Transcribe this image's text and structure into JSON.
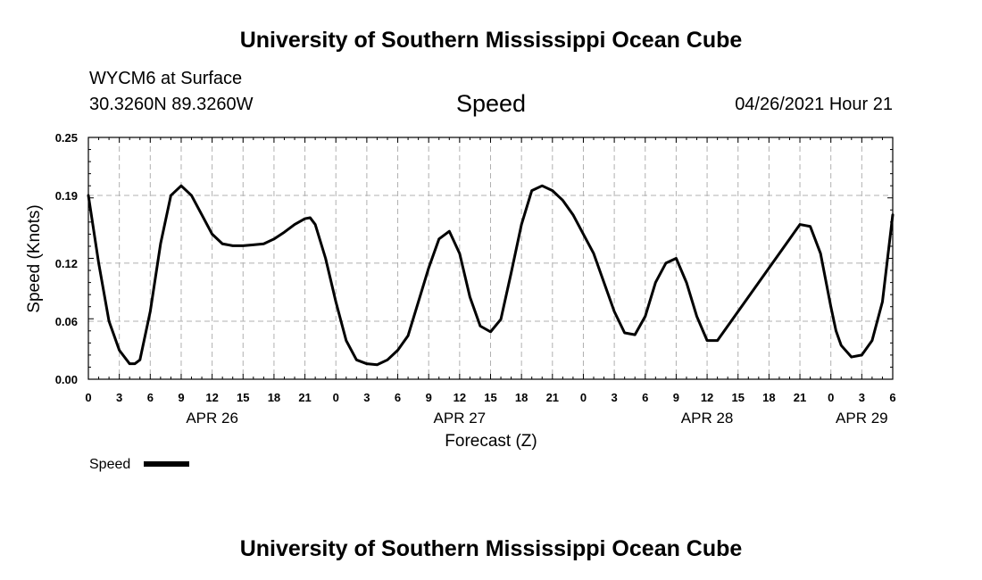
{
  "header": {
    "title": "University of Southern Mississippi Ocean Cube",
    "station": "WYCM6 at Surface",
    "coords": "30.3260N  89.3260W",
    "plot_title": "Speed",
    "date_hour": "04/26/2021 Hour 21"
  },
  "footer": {
    "title": "University of Southern Mississippi Ocean Cube"
  },
  "colors": {
    "line": "#000000",
    "grid": "#b0b0b0",
    "background": "#ffffff"
  },
  "chart_data": {
    "type": "line",
    "xlabel": "Forecast (Z)",
    "ylabel": "Speed (Knots)",
    "ylim": [
      0,
      0.25
    ],
    "xlim": [
      0,
      78
    ],
    "y_ticks": [
      0.0,
      0.06,
      0.12,
      0.19,
      0.25
    ],
    "y_tick_labels": [
      "0.00",
      "0.06",
      "0.12",
      "0.19",
      "0.25"
    ],
    "x_ticks": [
      0,
      3,
      6,
      9,
      12,
      15,
      18,
      21,
      24,
      27,
      30,
      33,
      36,
      39,
      42,
      45,
      48,
      51,
      54,
      57,
      60,
      63,
      66,
      69,
      72,
      75,
      78
    ],
    "x_tick_labels": [
      "0",
      "3",
      "6",
      "9",
      "12",
      "15",
      "18",
      "21",
      "0",
      "3",
      "6",
      "9",
      "12",
      "15",
      "18",
      "21",
      "0",
      "3",
      "6",
      "9",
      "12",
      "15",
      "18",
      "21",
      "0",
      "3",
      "6"
    ],
    "day_labels": [
      {
        "label": "APR 26",
        "x": 12
      },
      {
        "label": "APR 27",
        "x": 36
      },
      {
        "label": "APR 28",
        "x": 60
      },
      {
        "label": "APR 29",
        "x": 75
      }
    ],
    "grid": true,
    "legend_position": "bottom-left",
    "series": [
      {
        "name": "Speed",
        "x": [
          0,
          1,
          2,
          3,
          4,
          4.5,
          5,
          6,
          7,
          8,
          9,
          10,
          11,
          12,
          13,
          14,
          15,
          16,
          17,
          18,
          19,
          20,
          21,
          21.5,
          22,
          23,
          24,
          25,
          26,
          27,
          28,
          29,
          30,
          31,
          32,
          33,
          34,
          35,
          36,
          37,
          38,
          39,
          40,
          41,
          42,
          43,
          44,
          45,
          46,
          47,
          48,
          49,
          50,
          51,
          52,
          53,
          54,
          55,
          56,
          57,
          58,
          59,
          60,
          61,
          62,
          63,
          64,
          65,
          66,
          67,
          68,
          69,
          70,
          71,
          72,
          72.5,
          73,
          74,
          75,
          76,
          77,
          78
        ],
        "values": [
          0.19,
          0.12,
          0.06,
          0.03,
          0.016,
          0.016,
          0.02,
          0.07,
          0.14,
          0.19,
          0.2,
          0.19,
          0.17,
          0.15,
          0.14,
          0.138,
          0.138,
          0.139,
          0.14,
          0.145,
          0.152,
          0.16,
          0.166,
          0.167,
          0.16,
          0.125,
          0.08,
          0.04,
          0.02,
          0.016,
          0.015,
          0.02,
          0.03,
          0.045,
          0.08,
          0.115,
          0.145,
          0.153,
          0.13,
          0.085,
          0.055,
          0.049,
          0.062,
          0.11,
          0.16,
          0.195,
          0.2,
          0.195,
          0.185,
          0.17,
          0.15,
          0.13,
          0.1,
          0.07,
          0.048,
          0.046,
          0.065,
          0.1,
          0.12,
          0.125,
          0.1,
          0.065,
          0.04,
          0.04,
          0.055,
          0.07,
          0.085,
          0.1,
          0.115,
          0.13,
          0.145,
          0.16,
          0.158,
          0.13,
          0.075,
          0.05,
          0.035,
          0.023,
          0.025,
          0.04,
          0.08,
          0.17
        ]
      }
    ]
  }
}
